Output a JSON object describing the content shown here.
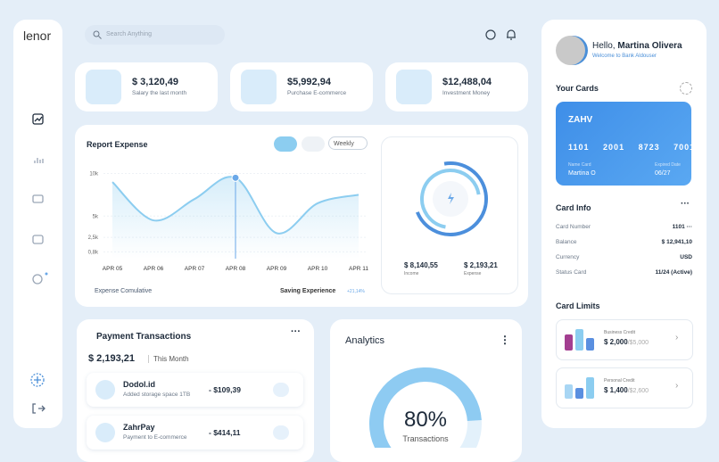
{
  "sidebar": {
    "logo": "lenor"
  },
  "header": {
    "search_placeholder": "Search Anything"
  },
  "stats": [
    {
      "value": "$ 3,120,49",
      "label": "Salary the last month"
    },
    {
      "value": "$5,992,94",
      "label": "Purchase E-commerce"
    },
    {
      "value": "$12,488,04",
      "label": "Investment Money"
    }
  ],
  "report": {
    "period": "Weekly",
    "footer_left": "Expense Comulative",
    "footer_right": "Saving Experience",
    "change": "+21,14%"
  },
  "summary": {
    "income_value": "$ 8,140,55",
    "income_label": "Income",
    "expense_value": "$ 2,193,21",
    "expense_label": "Expense"
  },
  "chart_data": [
    {
      "type": "line",
      "title": "Report Expense",
      "categories": [
        "APR 05",
        "APR 06",
        "APR 07",
        "APR 08",
        "APR 09",
        "APR 10",
        "APR 11"
      ],
      "values": [
        9000,
        4500,
        7000,
        9500,
        3000,
        6500,
        7500
      ],
      "color": "#8ccdf0",
      "ylim": [
        0,
        11000
      ],
      "yticks": [
        {
          "value": 10000,
          "label": "10k"
        },
        {
          "value": 5000,
          "label": "5k"
        },
        {
          "value": 2500,
          "label": "2,5k"
        },
        {
          "value": 800,
          "label": "0,8k"
        }
      ],
      "grid": true
    },
    {
      "type": "gauge",
      "title": "Analytics",
      "values": [
        80
      ],
      "value_labels": [
        "80%"
      ],
      "subtitle": "Transactions",
      "ylim": [
        0,
        100
      ],
      "color": "#8ecbf2"
    }
  ],
  "payments": {
    "title": "Payment Transactions",
    "total": "$ 2,193,21",
    "period": "This Month",
    "rows": [
      {
        "name": "Dodol.id",
        "desc": "Added storage space 1TB",
        "amount": "- $109,39"
      },
      {
        "name": "ZahrPay",
        "desc": "Payment to E-commerce",
        "amount": "- $414,11"
      }
    ]
  },
  "profile": {
    "greeting": "Hello,",
    "name": "Martina Olivera",
    "welcome": "Welcome to Bank Aldouser"
  },
  "cards": {
    "title": "Your Cards",
    "brand": "ZAHV",
    "number": [
      "1101",
      "2001",
      "8723",
      "7001"
    ],
    "name_label": "Name Card",
    "name": "Martina O",
    "exp_label": "Expired Date",
    "exp": "06/27"
  },
  "card_info": {
    "title": "Card Info",
    "rows": [
      [
        "Card Number",
        "1101 ···"
      ],
      [
        "Balance",
        "$ 12,941,10"
      ],
      [
        "Currency",
        "USD"
      ],
      [
        "Status Card",
        "11/24 (Active)"
      ]
    ]
  },
  "limits": {
    "title": "Card Limits",
    "items": [
      {
        "label": "Business Credit",
        "used": "$ 2,000",
        "total": "/$5,000"
      },
      {
        "label": "Personal Credit",
        "used": "$ 1,400",
        "total": "/$2,600"
      }
    ]
  }
}
